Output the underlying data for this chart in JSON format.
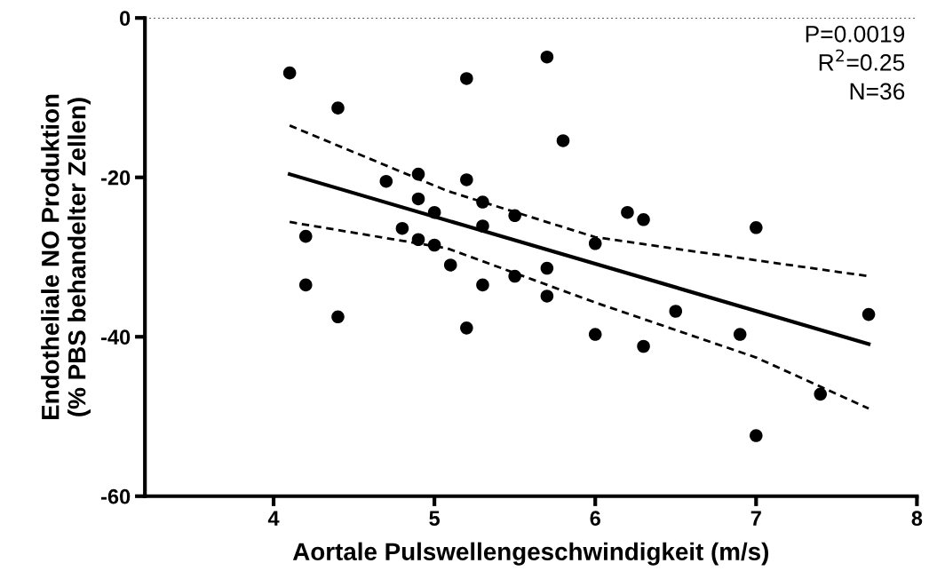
{
  "chart_data": {
    "type": "scatter",
    "xlabel": "Aortale Pulswellengeschwindigkeit (m/s)",
    "ylabel": "Endotheliale NO Produktion\n(% PBS behandelter Zellen)",
    "xlim": [
      3.2,
      8
    ],
    "xticks": [
      4,
      5,
      6,
      7,
      8
    ],
    "ylim": [
      -60,
      0
    ],
    "yticks": [
      -60,
      -40,
      -20,
      0
    ],
    "grid": false,
    "legend": false,
    "annotations": [
      "P=0.0019\nR$^{2}$=0.25\nN=36"
    ],
    "ref_lines": [
      {
        "axis": "y",
        "value": 0,
        "label": null,
        "color": "#000000",
        "line_style": "dotted"
      }
    ],
    "series": [
      {
        "color": "#000000",
        "marker": "circle",
        "x": [
          4.1,
          4.2,
          4.2,
          4.4,
          4.4,
          4.7,
          4.8,
          4.9,
          4.9,
          4.9,
          5.0,
          5.0,
          5.1,
          5.2,
          5.2,
          5.2,
          5.3,
          5.3,
          5.3,
          5.5,
          5.5,
          5.7,
          5.7,
          5.7,
          5.8,
          6.0,
          6.0,
          6.2,
          6.3,
          6.3,
          6.5,
          6.9,
          7.0,
          7.0,
          7.4,
          7.7
        ],
        "values": [
          -6.9,
          -27.4,
          -33.5,
          -11.3,
          -37.5,
          -20.5,
          -26.4,
          -19.6,
          -22.7,
          -27.8,
          -24.4,
          -28.5,
          -31.0,
          -7.6,
          -20.3,
          -38.9,
          -23.1,
          -26.1,
          -33.5,
          -24.8,
          -32.4,
          -4.9,
          -31.4,
          -34.9,
          -15.4,
          -28.3,
          -39.7,
          -24.4,
          -25.3,
          -41.2,
          -36.8,
          -39.7,
          -26.3,
          -52.4,
          -47.2,
          -37.2
        ]
      },
      {
        "type": "line",
        "color": "#000000",
        "marker": "none",
        "line_style": "solid",
        "x": [
          4.1,
          7.7
        ],
        "values": [
          -19.6,
          -40.9
        ]
      },
      {
        "type": "line",
        "color": "#000000",
        "marker": "none",
        "line_style": "dashed",
        "x": [
          4.1,
          5.08,
          6.0,
          7.0,
          7.7
        ],
        "values": [
          -13.5,
          -21.7,
          -27.5,
          -30.4,
          -32.4
        ]
      },
      {
        "type": "line",
        "color": "#000000",
        "marker": "none",
        "line_style": "dashed",
        "x": [
          4.1,
          5.08,
          6.0,
          7.0,
          7.7
        ],
        "values": [
          -25.6,
          -28.9,
          -35.7,
          -42.6,
          -49.0
        ]
      }
    ]
  }
}
